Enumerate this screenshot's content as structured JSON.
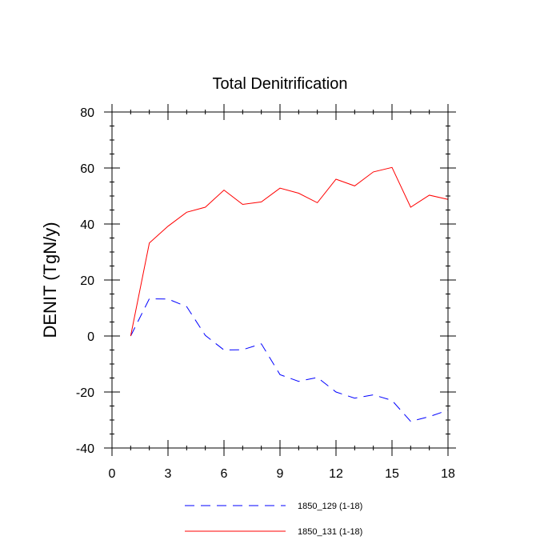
{
  "chart_data": {
    "type": "line",
    "title": "Total Denitrification",
    "xlabel": "",
    "ylabel": "DENIT  (TgN/y)",
    "xlim": [
      0,
      18
    ],
    "ylim": [
      -40,
      80
    ],
    "xticks": [
      0,
      3,
      6,
      9,
      12,
      15,
      18
    ],
    "xtick_labels": [
      "0",
      "3",
      "6",
      "9",
      "12",
      "15",
      "18"
    ],
    "yticks": [
      -40,
      -20,
      0,
      20,
      40,
      60,
      80
    ],
    "ytick_labels": [
      "-40",
      "-20",
      "0",
      "20",
      "40",
      "60",
      "80"
    ],
    "legend_position": "bottom",
    "grid": false,
    "series": [
      {
        "name": "1850_129 (1-18)",
        "color": "#0000ff",
        "style": "dashed",
        "x": [
          1,
          2,
          3,
          4,
          5,
          6,
          7,
          8,
          9,
          10,
          11,
          12,
          13,
          14,
          15,
          16,
          17,
          18
        ],
        "values": [
          0,
          13.3,
          13.2,
          10.5,
          0.2,
          -5,
          -4.9,
          -2.8,
          -13.8,
          -16.2,
          -14.8,
          -20,
          -22.2,
          -21,
          -23,
          -30.5,
          -28.8,
          -26.5
        ]
      },
      {
        "name": "1850_131 (1-18)",
        "color": "#ff0000",
        "style": "solid",
        "x": [
          1,
          2,
          3,
          4,
          5,
          6,
          7,
          8,
          9,
          10,
          11,
          12,
          13,
          14,
          15,
          16,
          17,
          18
        ],
        "values": [
          0,
          33.2,
          39.2,
          44.2,
          46,
          52.1,
          47,
          47.9,
          52.8,
          51,
          47.6,
          56,
          53.6,
          58.6,
          60.2,
          46,
          50.3,
          48.8
        ]
      }
    ]
  }
}
